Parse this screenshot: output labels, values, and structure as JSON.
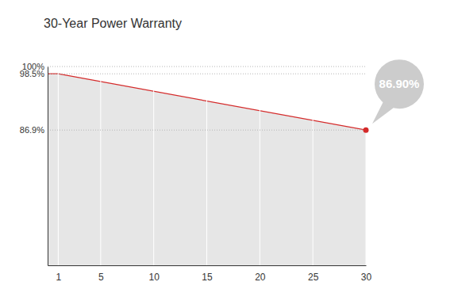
{
  "chart_data": {
    "type": "area",
    "title": "30-Year Power Warranty",
    "x": [
      0,
      1,
      30
    ],
    "values": [
      98.5,
      98.5,
      86.9
    ],
    "color": "#d42a2a",
    "xlim": [
      0,
      30
    ],
    "xticks": [
      1,
      5,
      10,
      15,
      20,
      25,
      30
    ],
    "ylim": [
      59,
      100
    ],
    "yticks": [
      {
        "value": 100,
        "label": "100%"
      },
      {
        "value": 98.5,
        "label": "98.5%"
      },
      {
        "value": 86.9,
        "label": "86.9%"
      }
    ],
    "grid": true,
    "annotations": [
      {
        "x": 30,
        "y": 86.9,
        "text": "86.90%"
      }
    ]
  }
}
